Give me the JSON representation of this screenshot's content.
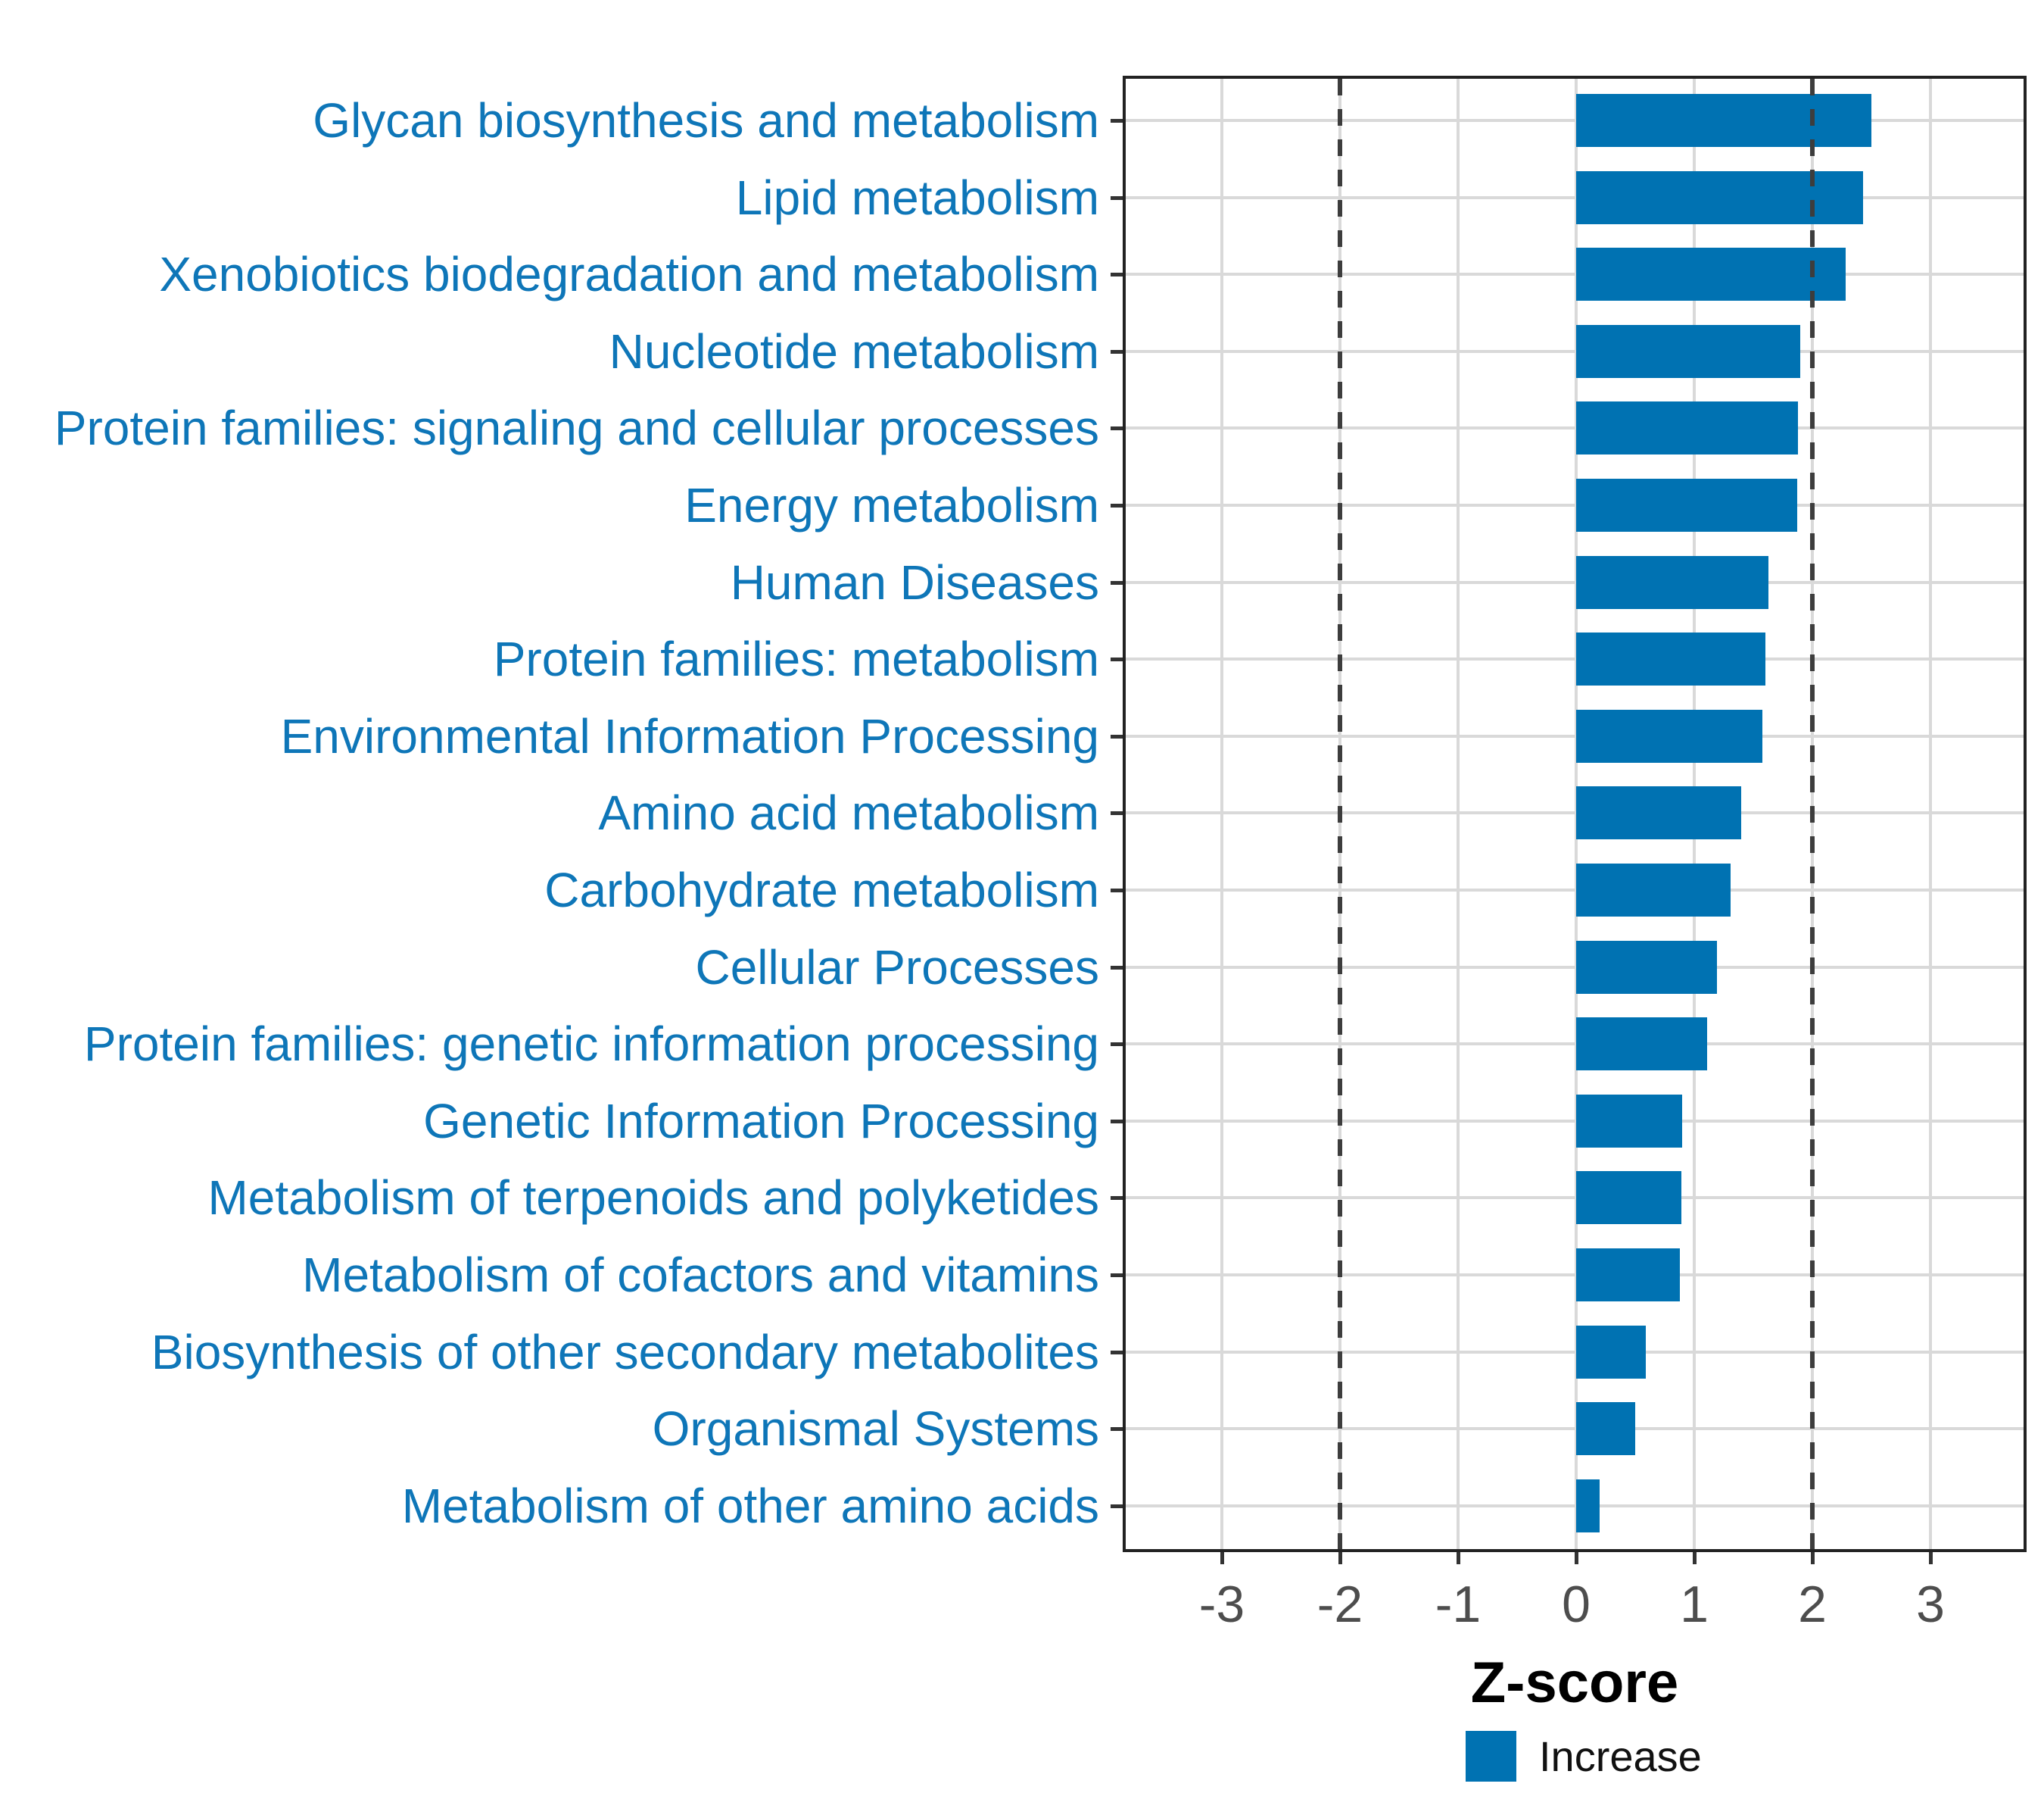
{
  "chart_data": {
    "type": "bar",
    "orientation": "horizontal",
    "title": "",
    "xlabel": "Z-score",
    "ylabel": "",
    "categories": [
      "Glycan biosynthesis and metabolism",
      "Lipid metabolism",
      "Xenobiotics biodegradation and metabolism",
      "Nucleotide metabolism",
      "Protein families: signaling and cellular processes",
      "Energy metabolism",
      "Human Diseases",
      "Protein families: metabolism",
      "Environmental Information Processing",
      "Amino acid metabolism",
      "Carbohydrate metabolism",
      "Cellular Processes",
      "Protein families: genetic information processing",
      "Genetic Information Processing",
      "Metabolism of terpenoids and polyketides",
      "Metabolism of cofactors and vitamins",
      "Biosynthesis of other secondary metabolites",
      "Organismal Systems",
      "Metabolism of other amino acids"
    ],
    "series": [
      {
        "name": "Increase",
        "values": [
          2.5,
          2.43,
          2.28,
          1.9,
          1.88,
          1.87,
          1.63,
          1.6,
          1.58,
          1.4,
          1.31,
          1.19,
          1.11,
          0.9,
          0.89,
          0.88,
          0.59,
          0.5,
          0.2
        ]
      }
    ],
    "x_ticks": [
      -3,
      -2,
      -1,
      0,
      1,
      2,
      3
    ],
    "xlim": [
      -3.85,
      3.8
    ],
    "reference_lines": {
      "x_values": [
        -2,
        2
      ],
      "style": "dashed"
    },
    "grid": true,
    "legend": {
      "position": "bottom",
      "items": [
        {
          "label": "Increase",
          "color": "#0072B2"
        }
      ]
    },
    "colors": {
      "bar": "#0072B2",
      "category_label": "#0E76B8",
      "tick_label": "#4d4d4d",
      "axis_title": "#000000",
      "gridline": "#d9d9d9",
      "panel_border": "#222222",
      "reference_line": "#3d3d3d",
      "tick_mark": "#333333",
      "background": "#ffffff"
    }
  }
}
